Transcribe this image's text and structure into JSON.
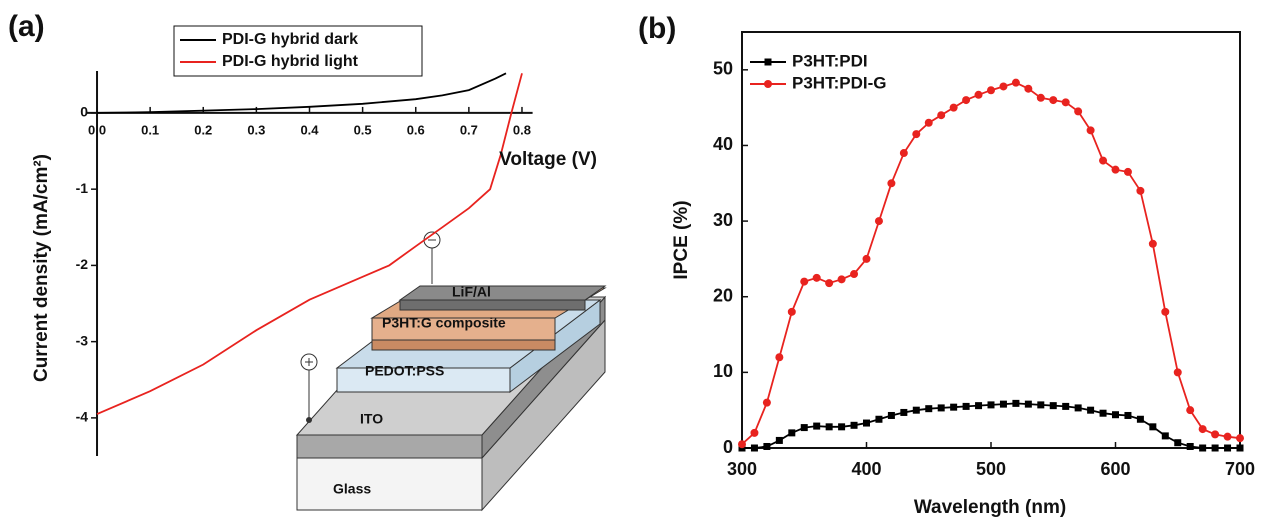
{
  "chart_data": [
    {
      "type": "line",
      "panel_label": "(a)",
      "x_label": "Voltage (V)",
      "y_label": "Current density (mA/cm²)",
      "xlim": [
        -0.02,
        0.82
      ],
      "ylim": [
        -4.5,
        0.55
      ],
      "xticks": [
        {
          "value": 0,
          "label": "0.0"
        },
        0.1,
        0.2,
        0.3,
        0.4,
        0.5,
        0.6,
        0.7,
        0.8
      ],
      "yticks": [
        0,
        -1,
        -2,
        -3,
        -4
      ],
      "axes_cross_at_zero": true,
      "legend": "top",
      "series": [
        {
          "name": "PDI-G hybrid dark",
          "color": "#000000",
          "x": [
            0,
            0.1,
            0.2,
            0.3,
            0.4,
            0.5,
            0.6,
            0.65,
            0.7,
            0.75,
            0.77
          ],
          "values": [
            0,
            0.01,
            0.03,
            0.05,
            0.08,
            0.12,
            0.18,
            0.23,
            0.3,
            0.45,
            0.52
          ]
        },
        {
          "name": "PDI-G hybrid light",
          "color": "#e8231f",
          "x": [
            0,
            0.1,
            0.2,
            0.3,
            0.4,
            0.5,
            0.55,
            0.6,
            0.65,
            0.7,
            0.74,
            0.76,
            0.78,
            0.8
          ],
          "values": [
            -3.95,
            -3.65,
            -3.3,
            -2.85,
            -2.45,
            -2.15,
            -2.0,
            -1.75,
            -1.5,
            -1.25,
            -1.0,
            -0.55,
            0,
            0.52
          ]
        }
      ],
      "inset_labels": [
        "LiF/Al",
        "P3HT:G composite",
        "PEDOT:PSS",
        "ITO",
        "Glass"
      ]
    },
    {
      "type": "line",
      "panel_label": "(b)",
      "x_label": "Wavelength (nm)",
      "y_label": "IPCE (%)",
      "xlim": [
        300,
        700
      ],
      "ylim": [
        0,
        55
      ],
      "xticks": [
        300,
        400,
        500,
        600,
        700
      ],
      "yticks": [
        0,
        10,
        20,
        30,
        40,
        50
      ],
      "legend": "upper left",
      "x": [
        300,
        310,
        320,
        330,
        340,
        350,
        360,
        370,
        380,
        390,
        400,
        410,
        420,
        430,
        440,
        450,
        460,
        470,
        480,
        490,
        500,
        510,
        520,
        530,
        540,
        550,
        560,
        570,
        580,
        590,
        600,
        610,
        620,
        630,
        640,
        650,
        660,
        670,
        680,
        690,
        700
      ],
      "series": [
        {
          "name": "P3HT:PDI",
          "color": "#000000",
          "marker": "square",
          "values": [
            0,
            0,
            0.2,
            1,
            2,
            2.7,
            2.9,
            2.8,
            2.8,
            3,
            3.3,
            3.8,
            4.3,
            4.7,
            5,
            5.2,
            5.3,
            5.4,
            5.5,
            5.6,
            5.7,
            5.8,
            5.9,
            5.8,
            5.7,
            5.6,
            5.5,
            5.3,
            5,
            4.6,
            4.4,
            4.3,
            3.8,
            2.8,
            1.6,
            0.7,
            0.2,
            0,
            0,
            0,
            0
          ]
        },
        {
          "name": "P3HT:PDI-G",
          "color": "#e8231f",
          "marker": "circle",
          "values": [
            0.5,
            2,
            6,
            12,
            18,
            22,
            22.5,
            21.8,
            22.3,
            23,
            25,
            30,
            35,
            39,
            41.5,
            43,
            44,
            45,
            46,
            46.7,
            47.3,
            47.8,
            48.3,
            47.5,
            46.3,
            46,
            45.7,
            44.5,
            42,
            38,
            36.8,
            36.5,
            34,
            27,
            18,
            10,
            5,
            2.5,
            1.8,
            1.5,
            1.3
          ]
        }
      ]
    }
  ]
}
